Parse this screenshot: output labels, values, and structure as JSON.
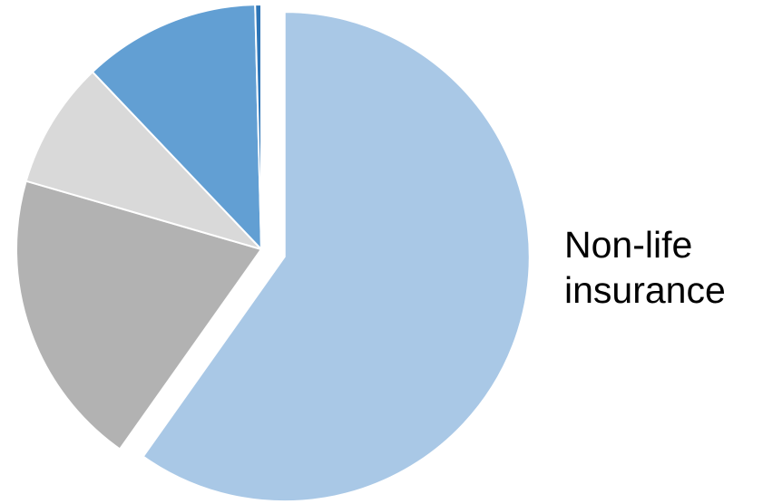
{
  "chart_data": {
    "type": "pie",
    "title": "",
    "slices": [
      {
        "label": "Non-life insurance",
        "value": 59.8,
        "color": "#A9C8E6",
        "exploded": true
      },
      {
        "label": "",
        "value": 19.7,
        "color": "#B2B2B2",
        "exploded": false
      },
      {
        "label": "",
        "value": 8.4,
        "color": "#D9D9D9",
        "exploded": false
      },
      {
        "label": "",
        "value": 11.7,
        "color": "#629FD3",
        "exploded": false
      },
      {
        "label": "",
        "value": 0.4,
        "color": "#2E75B6",
        "exploded": false
      }
    ],
    "legend": "none"
  }
}
